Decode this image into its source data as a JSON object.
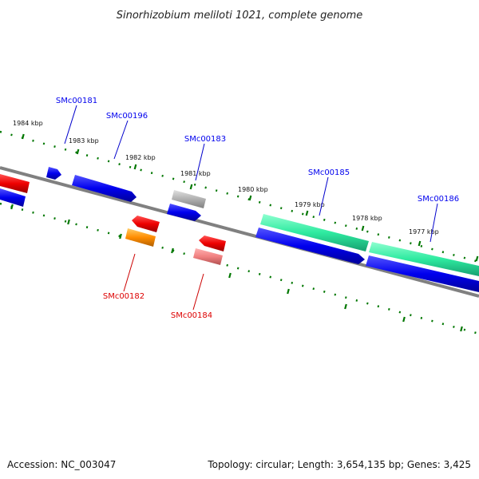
{
  "title": "Sinorhizobium meliloti 1021, complete genome",
  "footer": {
    "accession": "Accession: NC_003047",
    "topology": "Topology: circular; Length: 3,654,135 bp; Genes: 3,425"
  },
  "scale_labels": [
    "1984 kbp",
    "1983 kbp",
    "1982 kbp",
    "1981 kbp",
    "1980 kbp",
    "1979 kbp",
    "1978 kbp",
    "1977 kbp"
  ],
  "genes": {
    "forward": [
      {
        "id": "SMc00181",
        "color": "#0000ee"
      },
      {
        "id": "SMc00196",
        "color": "#0000ee"
      },
      {
        "id": "SMc00183",
        "color": "#0000ee"
      },
      {
        "id": "SMc00185",
        "color": "#0000ee"
      },
      {
        "id": "SMc00186",
        "color": "#0000ee"
      }
    ],
    "reverse": [
      {
        "id": "SMc00182",
        "color": "#dd0000"
      },
      {
        "id": "SMc00184",
        "color": "#dd0000"
      }
    ]
  },
  "colors": {
    "backbone": "#808080",
    "ticks": "#007700",
    "cds_forward": "#0000ee",
    "cds_reverse": "#ee0000",
    "rrna": "#2eeaa0",
    "misc_gray": "#b0b0b0",
    "orange": "#ff8c00",
    "salmon": "#f08080"
  }
}
